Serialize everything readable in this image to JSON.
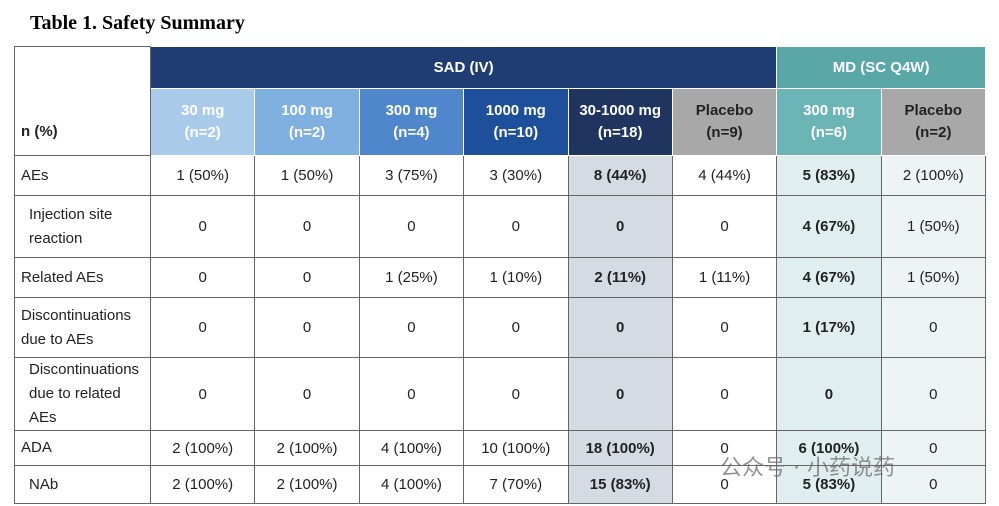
{
  "title": "Table 1. Safety Summary",
  "table": {
    "corner": "n (%)",
    "groups": [
      "SAD (IV)",
      "MD (SC Q4W)"
    ],
    "columns": [
      {
        "dose": "30 mg",
        "n": "(n=2)"
      },
      {
        "dose": "100 mg",
        "n": "(n=2)"
      },
      {
        "dose": "300 mg",
        "n": "(n=4)"
      },
      {
        "dose": "1000 mg",
        "n": "(n=10)"
      },
      {
        "dose": "30-1000 mg",
        "n": "(n=18)"
      },
      {
        "dose": "Placebo",
        "n": "(n=9)"
      },
      {
        "dose": "300 mg",
        "n": "(n=6)"
      },
      {
        "dose": "Placebo",
        "n": "(n=2)"
      }
    ],
    "rows": [
      {
        "label": "AEs",
        "cells": [
          "1 (50%)",
          "1 (50%)",
          "3 (75%)",
          "3 (30%)",
          "8 (44%)",
          "4 (44%)",
          "5 (83%)",
          "2 (100%)"
        ]
      },
      {
        "label": "Injection site reaction",
        "cells": [
          "0",
          "0",
          "0",
          "0",
          "0",
          "0",
          "4 (67%)",
          "1 (50%)"
        ]
      },
      {
        "label": "Related AEs",
        "cells": [
          "0",
          "0",
          "1 (25%)",
          "1 (10%)",
          "2 (11%)",
          "1 (11%)",
          "4 (67%)",
          "1 (50%)"
        ]
      },
      {
        "label": "Discontinuations due to AEs",
        "cells": [
          "0",
          "0",
          "0",
          "0",
          "0",
          "0",
          "1 (17%)",
          "0"
        ]
      },
      {
        "label": "Discontinuations due to related AEs",
        "cells": [
          "0",
          "0",
          "0",
          "0",
          "0",
          "0",
          "0",
          "0"
        ]
      },
      {
        "label": "ADA",
        "cells": [
          "2 (100%)",
          "2 (100%)",
          "4 (100%)",
          "10 (100%)",
          "18 (100%)",
          "0",
          "6 (100%)",
          "0"
        ]
      },
      {
        "label": "NAb",
        "cells": [
          "2 (100%)",
          "2 (100%)",
          "4 (100%)",
          "7 (70%)",
          "15 (83%)",
          "0",
          "5 (83%)",
          "0"
        ]
      }
    ]
  },
  "watermark": "公众号 · 小药说药"
}
